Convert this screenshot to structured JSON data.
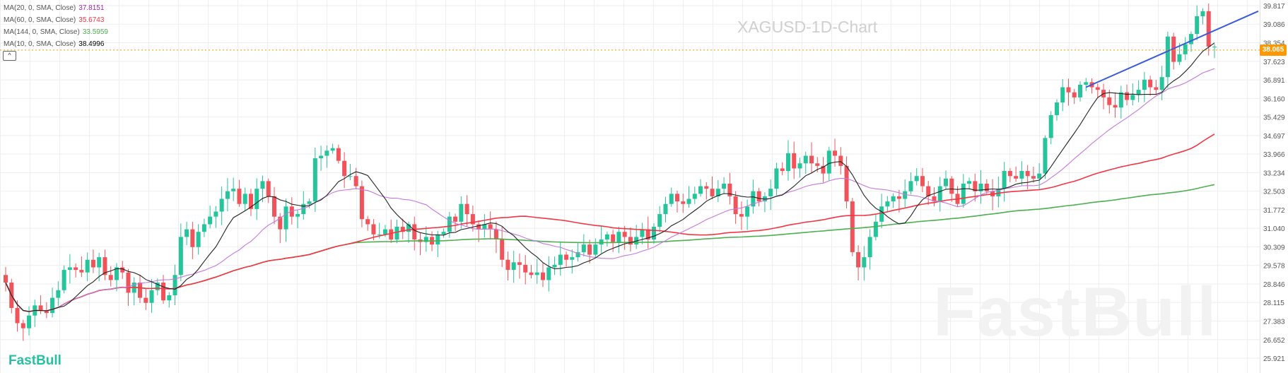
{
  "chart_title": "XAGUSD-1D-Chart",
  "watermark": "FastBull",
  "brand": "FastBull",
  "collapse_label": "^",
  "indicators": [
    {
      "label": "MA(20, 0, SMA, Close)",
      "value": "37.8151",
      "color": "#9c27b0"
    },
    {
      "label": "MA(60, 0, SMA, Close)",
      "value": "35.6743",
      "color": "#f23645"
    },
    {
      "label": "MA(144, 0, SMA, Close)",
      "value": "33.5959",
      "color": "#4caf50"
    },
    {
      "label": "MA(10, 0, SMA, Close)",
      "value": "38.4996",
      "color": "#000000"
    }
  ],
  "current_price": "38.065",
  "colors": {
    "up": "#26c49a",
    "down": "#f0545a",
    "ma20": "#c678dd",
    "ma60": "#f23645",
    "ma144": "#4caf50",
    "ma10": "#222222",
    "trend": "#3b5bdb",
    "price_line": "#ff9800",
    "grid": "#eeeeee"
  },
  "chart_data": {
    "type": "candlestick",
    "title": "XAGUSD-1D-Chart",
    "y_axis_ticks": [
      "39.817",
      "39.086",
      "38.354",
      "37.623",
      "36.891",
      "36.160",
      "35.429",
      "34.697",
      "33.966",
      "33.234",
      "32.503",
      "31.772",
      "31.040",
      "30.309",
      "29.578",
      "28.846",
      "28.115",
      "27.383",
      "26.652",
      "25.921"
    ],
    "ylim": [
      25.921,
      39.817
    ],
    "last_price": 38.065,
    "close": [
      28.9,
      27.9,
      27.3,
      27.1,
      27.6,
      28.0,
      27.8,
      27.7,
      28.3,
      28.6,
      29.4,
      29.5,
      29.4,
      29.3,
      29.8,
      29.5,
      29.9,
      29.2,
      29.0,
      29.5,
      29.3,
      28.5,
      28.9,
      28.3,
      28.1,
      28.6,
      28.9,
      28.2,
      28.4,
      29.2,
      30.7,
      31.0,
      30.3,
      30.9,
      31.2,
      31.5,
      31.7,
      32.2,
      32.5,
      32.6,
      32.0,
      32.4,
      31.8,
      32.6,
      32.9,
      32.3,
      31.5,
      31.0,
      31.9,
      31.5,
      31.6,
      32.0,
      32.1,
      33.8,
      33.9,
      34.1,
      34.2,
      33.7,
      33.1,
      33.1,
      32.7,
      31.4,
      31.2,
      30.8,
      30.8,
      31.0,
      30.6,
      31.1,
      30.9,
      31.2,
      30.6,
      30.5,
      30.7,
      30.4,
      30.8,
      30.9,
      31.5,
      31.3,
      32.0,
      31.6,
      31.2,
      31.0,
      31.2,
      31.0,
      30.6,
      29.8,
      29.4,
      29.7,
      29.6,
      29.3,
      29.2,
      29.3,
      29.0,
      29.5,
      29.6,
      30.0,
      29.8,
      29.9,
      30.1,
      30.4,
      30.0,
      30.4,
      30.6,
      30.8,
      30.5,
      30.9,
      30.7,
      30.4,
      30.7,
      31.0,
      30.6,
      31.1,
      31.6,
      32.0,
      32.4,
      32.1,
      32.0,
      32.2,
      32.4,
      32.7,
      32.6,
      32.3,
      32.6,
      32.8,
      32.3,
      31.6,
      31.5,
      31.9,
      32.5,
      32.1,
      32.3,
      32.6,
      33.4,
      33.3,
      34.0,
      33.4,
      33.6,
      33.9,
      33.6,
      33.5,
      33.2,
      34.1,
      33.9,
      33.5,
      32.1,
      30.1,
      29.5,
      29.9,
      30.7,
      31.3,
      31.9,
      32.1,
      32.3,
      32.2,
      32.5,
      32.9,
      33.1,
      32.7,
      32.3,
      32.1,
      32.7,
      33.0,
      32.4,
      32.0,
      32.8,
      32.9,
      32.5,
      32.8,
      32.5,
      32.3,
      32.6,
      33.3,
      33.1,
      33.0,
      33.3,
      33.1,
      33.0,
      33.2,
      34.6,
      35.5,
      36.0,
      36.6,
      36.4,
      36.2,
      36.7,
      36.8,
      36.6,
      36.5,
      36.2,
      35.9,
      35.8,
      36.4,
      36.1,
      36.3,
      36.5,
      36.9,
      36.6,
      36.5,
      37.0,
      38.6,
      37.6,
      37.9,
      38.3,
      38.7,
      39.4,
      39.6,
      38.2,
      38.2
    ],
    "series": [
      {
        "name": "MA(20, 0, SMA, Close)",
        "last_value": 37.8151
      },
      {
        "name": "MA(60, 0, SMA, Close)",
        "last_value": 35.6743
      },
      {
        "name": "MA(144, 0, SMA, Close)",
        "last_value": 33.5959
      },
      {
        "name": "MA(10, 0, SMA, Close)",
        "last_value": 38.4996
      }
    ],
    "grid": true
  }
}
